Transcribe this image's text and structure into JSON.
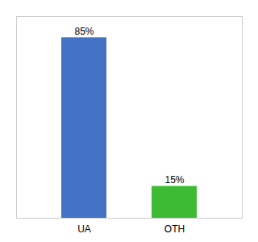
{
  "chart_data": {
    "type": "bar",
    "categories": [
      "UA",
      "OTH"
    ],
    "values": [
      85,
      15
    ],
    "value_labels": [
      "85%",
      "15%"
    ],
    "colors": [
      "#4472c4",
      "#3dbb35"
    ],
    "ylim": [
      0,
      95
    ],
    "data_labels": true,
    "tick_labels": "x",
    "grid": false
  }
}
